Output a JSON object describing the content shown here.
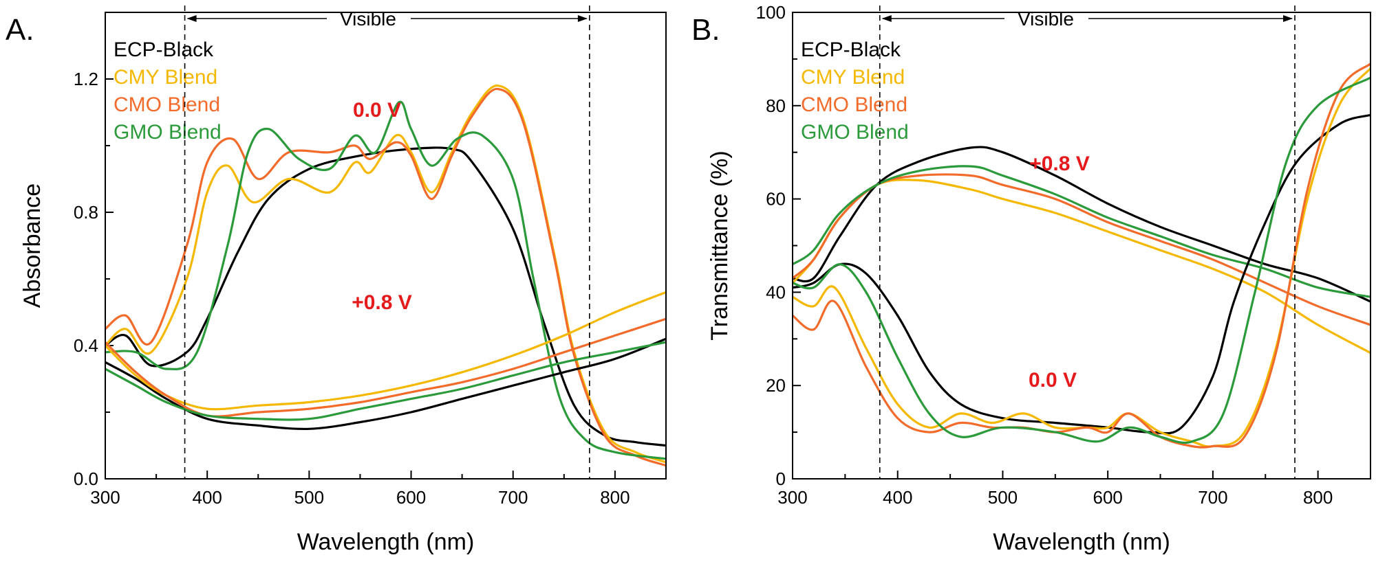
{
  "panels": [
    {
      "letter": "A.",
      "xlabel": "Wavelength (nm)",
      "ylabel": "Absorbance",
      "visible_label": "Visible",
      "legend": [
        "ECP-Black",
        "CMY Blend",
        "CMO Blend",
        "GMO Blend"
      ],
      "annotations": [
        "0.0 V",
        "+0.8 V"
      ],
      "x_ticks": [
        "300",
        "400",
        "500",
        "600",
        "700",
        "800"
      ],
      "y_ticks": [
        "0.0",
        "0.4",
        "0.8",
        "1.2"
      ]
    },
    {
      "letter": "B.",
      "xlabel": "Wavelength (nm)",
      "ylabel": "Transmittance (%)",
      "visible_label": "Visible",
      "legend": [
        "ECP-Black",
        "CMY Blend",
        "CMO Blend",
        "GMO Blend"
      ],
      "annotations": [
        "+0.8 V",
        "0.0 V"
      ],
      "x_ticks": [
        "300",
        "400",
        "500",
        "600",
        "700",
        "800"
      ],
      "y_ticks": [
        "0",
        "20",
        "40",
        "60",
        "80",
        "100"
      ]
    }
  ],
  "colors": {
    "ECP-Black": "#000000",
    "CMY Blend": "#f5b800",
    "CMO Blend": "#f26b2a",
    "GMO Blend": "#2a9a3a",
    "annotation": "#e41a1c"
  },
  "chart_data": [
    {
      "type": "line",
      "xlabel": "Wavelength (nm)",
      "ylabel": "Absorbance",
      "xlim": [
        300,
        850
      ],
      "ylim": [
        0,
        1.4
      ],
      "visible_range": [
        378,
        775
      ],
      "grid": false,
      "legend_position": "top-left",
      "series": [
        {
          "name": "ECP-Black",
          "state": "0.0 V",
          "x": [
            300,
            320,
            345,
            380,
            400,
            430,
            460,
            500,
            550,
            600,
            640,
            660,
            700,
            730,
            760,
            790,
            820,
            850
          ],
          "y": [
            0.4,
            0.43,
            0.34,
            0.38,
            0.48,
            0.68,
            0.84,
            0.93,
            0.97,
            0.99,
            0.99,
            0.95,
            0.75,
            0.47,
            0.22,
            0.13,
            0.11,
            0.1
          ]
        },
        {
          "name": "CMY Blend",
          "state": "0.0 V",
          "x": [
            300,
            320,
            345,
            380,
            400,
            420,
            445,
            480,
            520,
            545,
            560,
            585,
            600,
            620,
            640,
            660,
            685,
            710,
            740,
            760,
            790,
            820,
            850
          ],
          "y": [
            0.4,
            0.45,
            0.38,
            0.6,
            0.86,
            0.94,
            0.83,
            0.9,
            0.86,
            0.95,
            0.92,
            1.03,
            0.98,
            0.86,
            0.98,
            1.1,
            1.18,
            1.08,
            0.68,
            0.38,
            0.14,
            0.08,
            0.05
          ]
        },
        {
          "name": "CMO Blend",
          "state": "0.0 V",
          "x": [
            300,
            320,
            345,
            380,
            400,
            425,
            450,
            480,
            520,
            545,
            560,
            585,
            600,
            620,
            640,
            660,
            685,
            710,
            740,
            760,
            790,
            820,
            850
          ],
          "y": [
            0.45,
            0.49,
            0.41,
            0.7,
            0.95,
            1.02,
            0.9,
            0.98,
            0.98,
            1.0,
            0.96,
            1.01,
            0.97,
            0.84,
            0.97,
            1.09,
            1.17,
            1.07,
            0.67,
            0.37,
            0.13,
            0.07,
            0.04
          ]
        },
        {
          "name": "GMO Blend",
          "state": "0.0 V",
          "x": [
            300,
            330,
            360,
            390,
            420,
            440,
            460,
            490,
            520,
            545,
            565,
            588,
            600,
            620,
            645,
            670,
            700,
            720,
            745,
            770,
            800,
            850
          ],
          "y": [
            0.38,
            0.38,
            0.33,
            0.38,
            0.7,
            0.98,
            1.05,
            0.96,
            0.93,
            1.03,
            0.98,
            1.13,
            1.05,
            0.94,
            1.02,
            1.03,
            0.9,
            0.6,
            0.25,
            0.12,
            0.08,
            0.06
          ]
        },
        {
          "name": "ECP-Black",
          "state": "+0.8 V",
          "x": [
            300,
            330,
            360,
            400,
            450,
            500,
            550,
            600,
            650,
            700,
            750,
            800,
            850
          ],
          "y": [
            0.35,
            0.3,
            0.24,
            0.18,
            0.16,
            0.15,
            0.17,
            0.2,
            0.24,
            0.28,
            0.32,
            0.36,
            0.42
          ]
        },
        {
          "name": "CMY Blend",
          "state": "+0.8 V",
          "x": [
            300,
            330,
            360,
            400,
            450,
            500,
            550,
            600,
            650,
            700,
            750,
            800,
            850
          ],
          "y": [
            0.4,
            0.31,
            0.25,
            0.21,
            0.22,
            0.23,
            0.25,
            0.28,
            0.32,
            0.37,
            0.43,
            0.5,
            0.56
          ]
        },
        {
          "name": "CMO Blend",
          "state": "+0.8 V",
          "x": [
            300,
            330,
            360,
            400,
            450,
            500,
            550,
            600,
            650,
            700,
            750,
            800,
            850
          ],
          "y": [
            0.41,
            0.32,
            0.25,
            0.19,
            0.2,
            0.21,
            0.23,
            0.26,
            0.29,
            0.33,
            0.38,
            0.43,
            0.48
          ]
        },
        {
          "name": "GMO Blend",
          "state": "+0.8 V",
          "x": [
            300,
            330,
            360,
            400,
            450,
            500,
            550,
            600,
            650,
            700,
            750,
            800,
            850
          ],
          "y": [
            0.33,
            0.28,
            0.23,
            0.19,
            0.18,
            0.18,
            0.21,
            0.24,
            0.27,
            0.31,
            0.35,
            0.38,
            0.41
          ]
        }
      ]
    },
    {
      "type": "line",
      "xlabel": "Wavelength (nm)",
      "ylabel": "Transmittance (%)",
      "xlim": [
        300,
        850
      ],
      "ylim": [
        0,
        100
      ],
      "visible_range": [
        383,
        778
      ],
      "grid": false,
      "legend_position": "top-left",
      "series": [
        {
          "name": "ECP-Black",
          "state": "+0.8 V",
          "x": [
            300,
            320,
            345,
            380,
            420,
            470,
            500,
            550,
            600,
            650,
            700,
            750,
            800,
            850
          ],
          "y": [
            43,
            43,
            52,
            63,
            68,
            71,
            70,
            65,
            59,
            54,
            50,
            46,
            43,
            38
          ]
        },
        {
          "name": "CMY Blend",
          "state": "+0.8 V",
          "x": [
            300,
            320,
            345,
            380,
            420,
            470,
            500,
            550,
            600,
            650,
            700,
            750,
            800,
            850
          ],
          "y": [
            42,
            47,
            56,
            63,
            64,
            62,
            60,
            57,
            53,
            49,
            45,
            40,
            33,
            27
          ]
        },
        {
          "name": "CMO Blend",
          "state": "+0.8 V",
          "x": [
            300,
            320,
            345,
            380,
            420,
            470,
            500,
            550,
            600,
            650,
            700,
            750,
            800,
            850
          ],
          "y": [
            43,
            47,
            56,
            63,
            65,
            65,
            63,
            60,
            55,
            51,
            47,
            42,
            37,
            33
          ]
        },
        {
          "name": "GMO Blend",
          "state": "+0.8 V",
          "x": [
            300,
            320,
            345,
            380,
            420,
            470,
            500,
            550,
            600,
            650,
            700,
            750,
            800,
            850
          ],
          "y": [
            46,
            49,
            57,
            63,
            66,
            67,
            65,
            61,
            56,
            52,
            48,
            45,
            41,
            39
          ]
        },
        {
          "name": "ECP-Black",
          "state": "0.0 V",
          "x": [
            300,
            320,
            345,
            370,
            400,
            430,
            460,
            500,
            550,
            600,
            640,
            670,
            700,
            720,
            750,
            780,
            820,
            850
          ],
          "y": [
            41,
            42,
            46,
            44,
            35,
            23,
            16,
            13,
            12,
            11,
            10,
            11,
            22,
            38,
            55,
            68,
            76,
            78
          ]
        },
        {
          "name": "CMY Blend",
          "state": "0.0 V",
          "x": [
            300,
            320,
            340,
            370,
            400,
            430,
            460,
            490,
            520,
            550,
            580,
            600,
            620,
            650,
            680,
            700,
            730,
            760,
            790,
            820,
            850
          ],
          "y": [
            39,
            37,
            41,
            28,
            16,
            11,
            14,
            12,
            14,
            11,
            11,
            11,
            14,
            10,
            8,
            7,
            10,
            28,
            60,
            80,
            88
          ]
        },
        {
          "name": "CMO Blend",
          "state": "0.0 V",
          "x": [
            300,
            320,
            340,
            370,
            400,
            430,
            460,
            490,
            520,
            550,
            580,
            600,
            620,
            650,
            680,
            700,
            730,
            760,
            790,
            820,
            850
          ],
          "y": [
            35,
            32,
            38,
            24,
            13,
            10,
            12,
            11,
            11,
            10,
            11,
            10,
            14,
            9,
            7,
            7,
            9,
            27,
            62,
            83,
            89
          ]
        },
        {
          "name": "GMO Blend",
          "state": "0.0 V",
          "x": [
            300,
            320,
            345,
            370,
            400,
            430,
            460,
            500,
            550,
            590,
            620,
            650,
            680,
            710,
            740,
            770,
            800,
            850
          ],
          "y": [
            42,
            41,
            46,
            40,
            26,
            14,
            9,
            11,
            10,
            8,
            11,
            9,
            8,
            14,
            40,
            68,
            80,
            86
          ]
        }
      ]
    }
  ]
}
